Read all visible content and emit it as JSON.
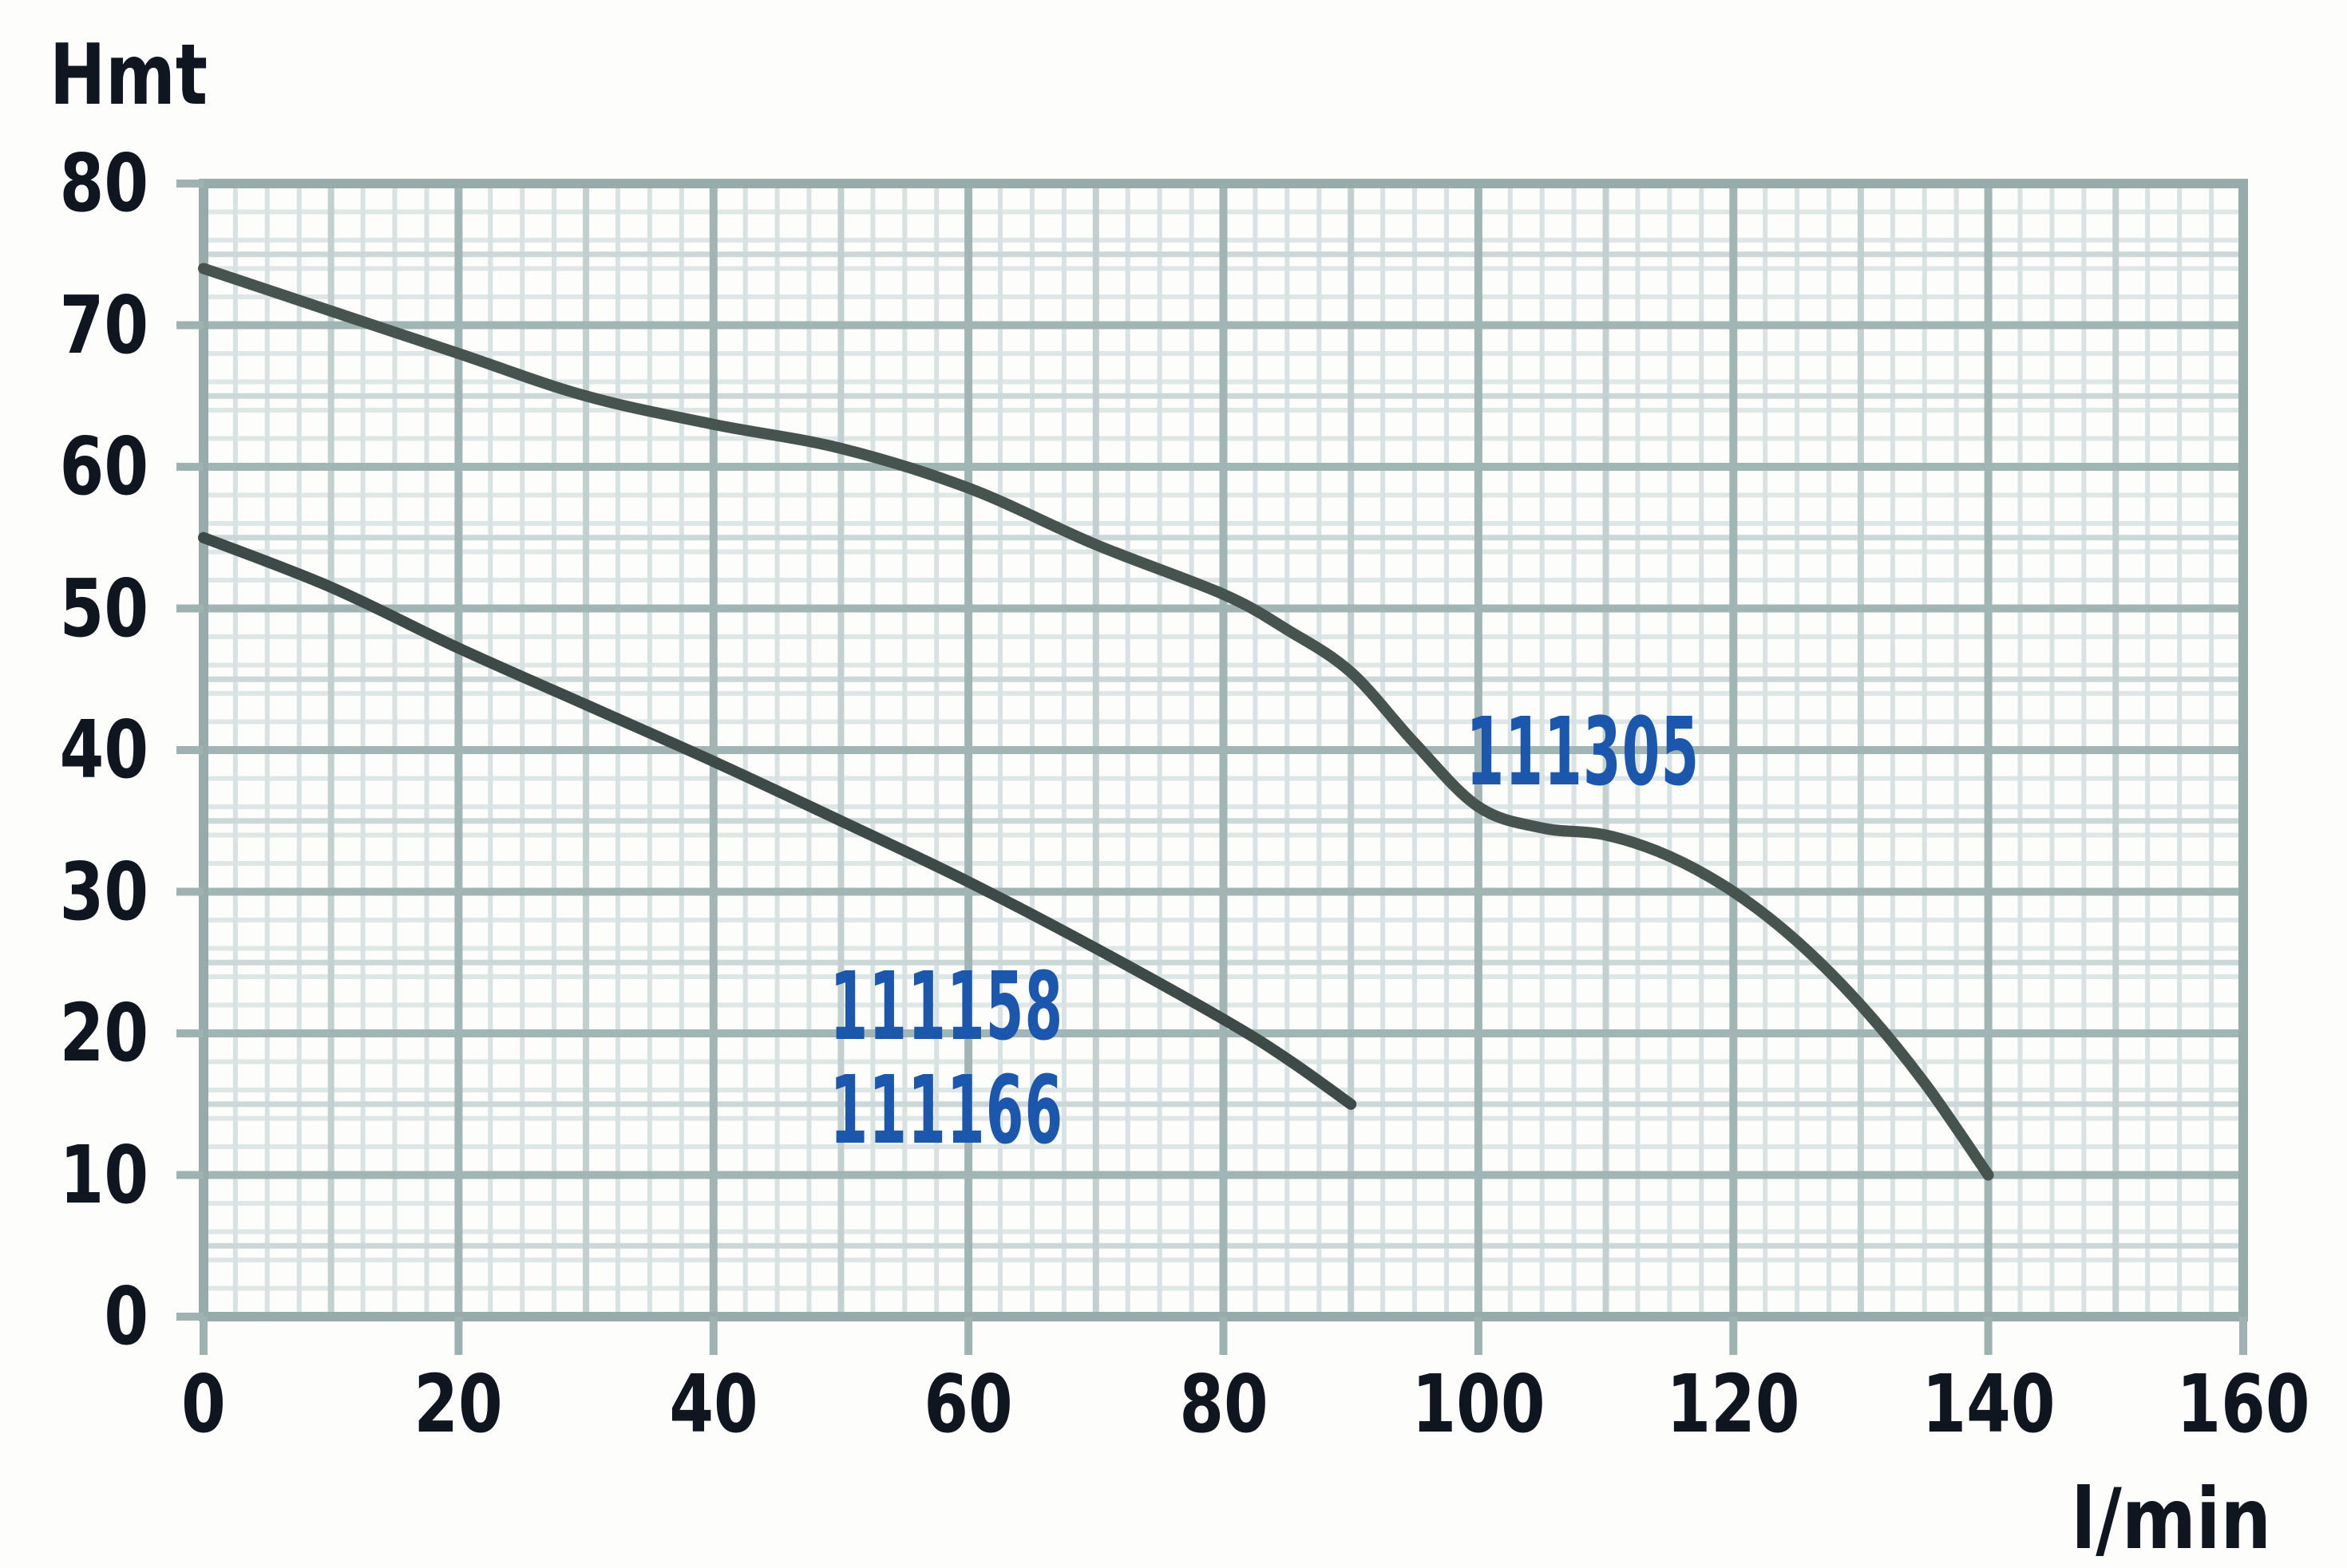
{
  "chart_data": {
    "type": "line",
    "title": "",
    "xlabel": "l/min",
    "ylabel": "Hmt",
    "xlim": [
      0,
      160
    ],
    "ylim": [
      0,
      80
    ],
    "x_ticks": [
      0,
      20,
      40,
      60,
      80,
      100,
      120,
      140,
      160
    ],
    "y_ticks": [
      0,
      10,
      20,
      30,
      40,
      50,
      60,
      70,
      80
    ],
    "grid": {
      "minor_on": true,
      "major_on": true,
      "x_minor_step": 2.5,
      "x_semi_step": 10,
      "x_major_step": 20,
      "y_minor_step": 2,
      "y_semi_step": 5,
      "y_major_step": 10
    },
    "legend_position": "none",
    "series": [
      {
        "name": "111305",
        "points": [
          [
            0,
            74
          ],
          [
            10,
            71
          ],
          [
            20,
            68
          ],
          [
            30,
            65
          ],
          [
            40,
            63
          ],
          [
            50,
            61.3
          ],
          [
            60,
            58.5
          ],
          [
            70,
            54.5
          ],
          [
            80,
            51
          ],
          [
            85,
            48.5
          ],
          [
            90,
            45.5
          ],
          [
            95,
            40.5
          ],
          [
            100,
            36
          ],
          [
            105,
            34.5
          ],
          [
            110,
            34
          ],
          [
            115,
            32.5
          ],
          [
            120,
            30
          ],
          [
            125,
            26.5
          ],
          [
            130,
            22
          ],
          [
            135,
            16.5
          ],
          [
            140,
            10
          ]
        ],
        "color": "#46534f"
      },
      {
        "name": "111158 / 111166",
        "points": [
          [
            0,
            55
          ],
          [
            10,
            51.5
          ],
          [
            20,
            47.2
          ],
          [
            30,
            43.2
          ],
          [
            40,
            39.2
          ],
          [
            50,
            35
          ],
          [
            60,
            30.7
          ],
          [
            70,
            26
          ],
          [
            80,
            21
          ],
          [
            85,
            18.2
          ],
          [
            90,
            15
          ]
        ],
        "color": "#3d4a47"
      }
    ],
    "annotations": [
      {
        "text": "111305",
        "x": 108.2,
        "y": 39.9
      },
      {
        "text": "111158",
        "x": 58.3,
        "y": 21.9
      },
      {
        "text": "111166",
        "x": 58.3,
        "y": 14.6
      }
    ]
  },
  "colors": {
    "background": "#fdfdfc",
    "grid_minor_v": "#d9e2e2",
    "grid_minor_h": "#dee6e6",
    "grid_semi_v": "#c3d0d0",
    "grid_semi_h": "#ccd7d7",
    "grid_major": "#a2b5b5",
    "axis_border": "#98abab",
    "tick_mark": "#9fb2b2",
    "axis_text": "#10161f",
    "annotation_blue": "#1b57ad"
  }
}
